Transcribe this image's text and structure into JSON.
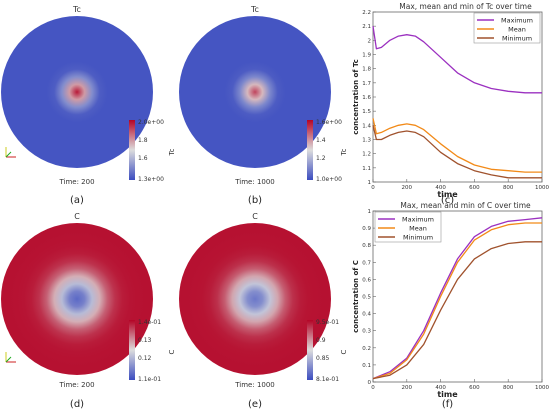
{
  "panels": [
    {
      "label": "(a)",
      "field": "Tc",
      "time": "Time: 200",
      "colorbar": {
        "title": "Tc",
        "max": "2.0e+00",
        "ticks": [
          "1.8",
          "1.6"
        ],
        "min": "1.3e+00"
      },
      "peak": 0.95,
      "inverted": false
    },
    {
      "label": "(b)",
      "field": "Tc",
      "time": "Time: 1000",
      "colorbar": {
        "title": "Tc",
        "max": "1.6e+00",
        "ticks": [
          "1.4",
          "1.2"
        ],
        "min": "1.0e+00"
      },
      "peak": 0.85,
      "inverted": false
    },
    {
      "label": "(d)",
      "field": "C",
      "time": "Time: 200",
      "colorbar": {
        "title": "C",
        "max": "1.4e-01",
        "ticks": [
          "0.13",
          "0.12"
        ],
        "min": "1.1e-01"
      },
      "peak": 0.1,
      "inverted": true
    },
    {
      "label": "(e)",
      "field": "C",
      "time": "Time: 1000",
      "colorbar": {
        "title": "C",
        "max": "9.5e-01",
        "ticks": [
          "0.9",
          "0.85"
        ],
        "min": "8.1e-01"
      },
      "peak": 0.15,
      "inverted": true
    }
  ],
  "chart_data": [
    {
      "type": "line",
      "panel_label": "(c)",
      "title": "Max, mean and min of Tc over time",
      "xlabel": "time",
      "ylabel": "concentration of Tc",
      "xlim": [
        0,
        1000
      ],
      "ylim": [
        1,
        2.2
      ],
      "xticks": [
        0,
        200,
        400,
        600,
        800,
        1000
      ],
      "yticks": [
        1,
        1.1,
        1.2,
        1.3,
        1.4,
        1.5,
        1.6,
        1.7,
        1.8,
        1.9,
        2,
        2.1,
        2.2
      ],
      "legend": "top-right",
      "grid": false,
      "series": [
        {
          "name": "Maximum",
          "color": "#9b30c0",
          "x": [
            0,
            20,
            50,
            100,
            150,
            200,
            250,
            300,
            400,
            500,
            600,
            700,
            800,
            900,
            1000
          ],
          "y": [
            2.1,
            1.94,
            1.95,
            2.0,
            2.03,
            2.04,
            2.03,
            1.99,
            1.88,
            1.77,
            1.7,
            1.66,
            1.64,
            1.63,
            1.63
          ]
        },
        {
          "name": "Mean",
          "color": "#f28a18",
          "x": [
            0,
            20,
            50,
            100,
            150,
            200,
            250,
            300,
            400,
            500,
            600,
            700,
            800,
            900,
            1000
          ],
          "y": [
            1.45,
            1.34,
            1.35,
            1.38,
            1.4,
            1.41,
            1.4,
            1.37,
            1.27,
            1.18,
            1.12,
            1.09,
            1.08,
            1.07,
            1.07
          ]
        },
        {
          "name": "Minimum",
          "color": "#a0522d",
          "x": [
            0,
            20,
            50,
            100,
            150,
            200,
            250,
            300,
            400,
            500,
            600,
            700,
            800,
            900,
            1000
          ],
          "y": [
            1.4,
            1.3,
            1.3,
            1.33,
            1.35,
            1.36,
            1.35,
            1.32,
            1.21,
            1.13,
            1.08,
            1.05,
            1.03,
            1.03,
            1.03
          ]
        }
      ]
    },
    {
      "type": "line",
      "panel_label": "(f)",
      "title": "Max, mean and min of C over time",
      "xlabel": "time",
      "ylabel": "concentration of C",
      "xlim": [
        0,
        1000
      ],
      "ylim": [
        0,
        1
      ],
      "xticks": [
        0,
        200,
        400,
        600,
        800,
        1000
      ],
      "yticks": [
        0,
        0.1,
        0.2,
        0.3,
        0.4,
        0.5,
        0.6,
        0.7,
        0.8,
        0.9,
        1
      ],
      "legend": "top-left",
      "grid": false,
      "series": [
        {
          "name": "Maximum",
          "color": "#9b30c0",
          "x": [
            0,
            100,
            200,
            300,
            400,
            500,
            600,
            700,
            800,
            900,
            1000
          ],
          "y": [
            0.02,
            0.06,
            0.14,
            0.3,
            0.52,
            0.72,
            0.85,
            0.91,
            0.94,
            0.95,
            0.96
          ]
        },
        {
          "name": "Mean",
          "color": "#f28a18",
          "x": [
            0,
            100,
            200,
            300,
            400,
            500,
            600,
            700,
            800,
            900,
            1000
          ],
          "y": [
            0.02,
            0.05,
            0.13,
            0.28,
            0.5,
            0.7,
            0.83,
            0.89,
            0.92,
            0.93,
            0.93
          ]
        },
        {
          "name": "Minimum",
          "color": "#a0522d",
          "x": [
            0,
            100,
            200,
            300,
            400,
            500,
            600,
            700,
            800,
            900,
            1000
          ],
          "y": [
            0.02,
            0.04,
            0.1,
            0.22,
            0.42,
            0.6,
            0.72,
            0.78,
            0.81,
            0.82,
            0.82
          ]
        }
      ]
    }
  ]
}
